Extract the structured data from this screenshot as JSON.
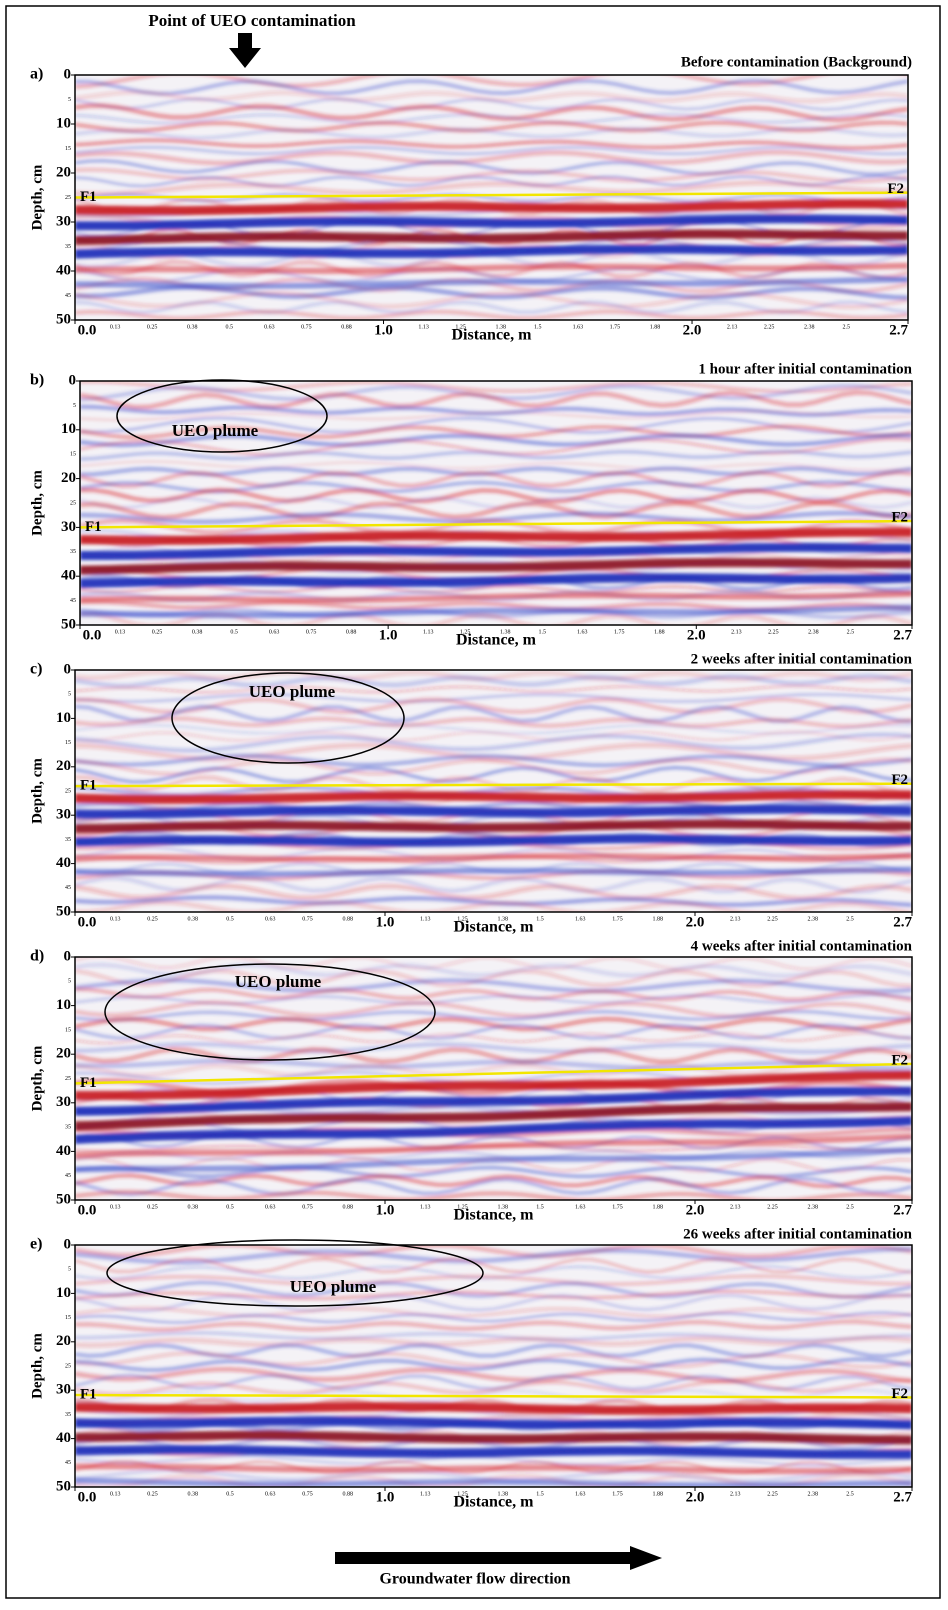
{
  "top_label": "Point of UEO contamination",
  "bottom_label": "Groundwater flow direction",
  "minor_xticks": [
    0.13,
    0.25,
    0.38,
    0.5,
    0.63,
    0.75,
    0.88,
    1.13,
    1.25,
    1.38,
    1.5,
    1.63,
    1.75,
    1.88,
    2.13,
    2.25,
    2.38,
    2.5
  ],
  "minor_yticks": [
    5,
    15,
    25,
    35,
    45
  ],
  "panels": [
    {
      "letter": "a)",
      "title": "Before contamination (Background)",
      "ylabel": "Depth, cm",
      "xlabel": "Distance, m",
      "ylim": [
        0,
        50
      ],
      "yticks": [
        0,
        10,
        20,
        30,
        40,
        50
      ],
      "xlim": [
        0,
        2.7
      ],
      "xticks": [
        {
          "value": 0,
          "label": "0.0"
        },
        {
          "value": 1,
          "label": "1.0"
        },
        {
          "value": 2,
          "label": "2.0"
        },
        2.7
      ],
      "reflector_start": "F1",
      "reflector_end": "F2"
    },
    {
      "letter": "b)",
      "title": "1 hour after initial contamination",
      "ylabel": "Depth, cm",
      "xlabel": "Distance, m",
      "ylim": [
        0,
        50
      ],
      "yticks": [
        0,
        10,
        20,
        30,
        40,
        50
      ],
      "xlim": [
        0,
        2.7
      ],
      "xticks": [
        {
          "value": 0,
          "label": "0.0"
        },
        {
          "value": 1,
          "label": "1.0"
        },
        {
          "value": 2,
          "label": "2.0"
        },
        2.7
      ],
      "reflector_start": "F1",
      "reflector_end": "F2",
      "plume_label": "UEO plume"
    },
    {
      "letter": "c)",
      "title": "2 weeks after initial contamination",
      "ylabel": "Depth, cm",
      "xlabel": "Distance, m",
      "ylim": [
        0,
        50
      ],
      "yticks": [
        0,
        10,
        20,
        30,
        40,
        50
      ],
      "xlim": [
        0,
        2.7
      ],
      "xticks": [
        {
          "value": 0,
          "label": "0.0"
        },
        {
          "value": 1,
          "label": "1.0"
        },
        {
          "value": 2,
          "label": "2.0"
        },
        2.7
      ],
      "reflector_start": "F1",
      "reflector_end": "F2",
      "plume_label": "UEO plume"
    },
    {
      "letter": "d)",
      "title": "4 weeks after initial contamination",
      "ylabel": "Depth, cm",
      "xlabel": "Distance, m",
      "ylim": [
        0,
        50
      ],
      "yticks": [
        0,
        10,
        20,
        30,
        40,
        50
      ],
      "xlim": [
        0,
        2.7
      ],
      "xticks": [
        {
          "value": 0,
          "label": "0.0"
        },
        {
          "value": 1,
          "label": "1.0"
        },
        {
          "value": 2,
          "label": "2.0"
        },
        2.7
      ],
      "reflector_start": "F1",
      "reflector_end": "F2",
      "plume_label": "UEO plume"
    },
    {
      "letter": "e)",
      "title": "26 weeks after initial contamination",
      "ylabel": "Depth, cm",
      "xlabel": "Distance, m",
      "ylim": [
        0,
        50
      ],
      "yticks": [
        0,
        10,
        20,
        30,
        40,
        50
      ],
      "xlim": [
        0,
        2.7
      ],
      "xticks": [
        {
          "value": 0,
          "label": "0.0"
        },
        {
          "value": 1,
          "label": "1.0"
        },
        {
          "value": 2,
          "label": "2.0"
        },
        2.7
      ],
      "reflector_start": "F1",
      "reflector_end": "F2",
      "plume_label": "UEO plume"
    }
  ]
}
